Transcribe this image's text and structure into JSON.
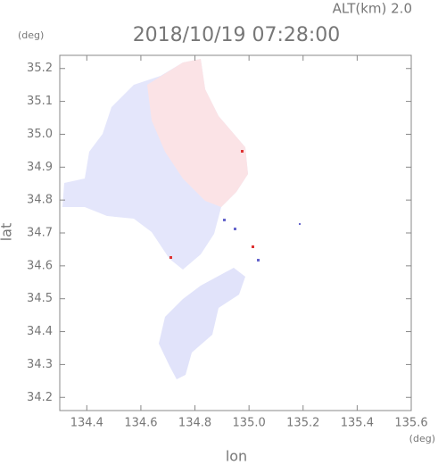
{
  "chart_data": {
    "type": "map",
    "title": "2018/10/19 07:28:00",
    "subtitle": "ALT(km)  2.0",
    "y_unit": "(deg)",
    "x_unit": "(deg)",
    "ylabel": "lat",
    "xlabel": "lon",
    "xlim": [
      134.3,
      135.6
    ],
    "ylim": [
      34.16,
      35.24
    ],
    "xticks": [
      134.4,
      134.6,
      134.8,
      {
        "value": 135,
        "label": "135.0"
      },
      135.2,
      135.4,
      135.6
    ],
    "yticks": [
      34.2,
      34.3,
      34.4,
      34.5,
      34.6,
      34.7,
      34.8,
      34.9,
      {
        "value": 35,
        "label": "35.0"
      },
      35.1,
      35.2
    ]
  }
}
